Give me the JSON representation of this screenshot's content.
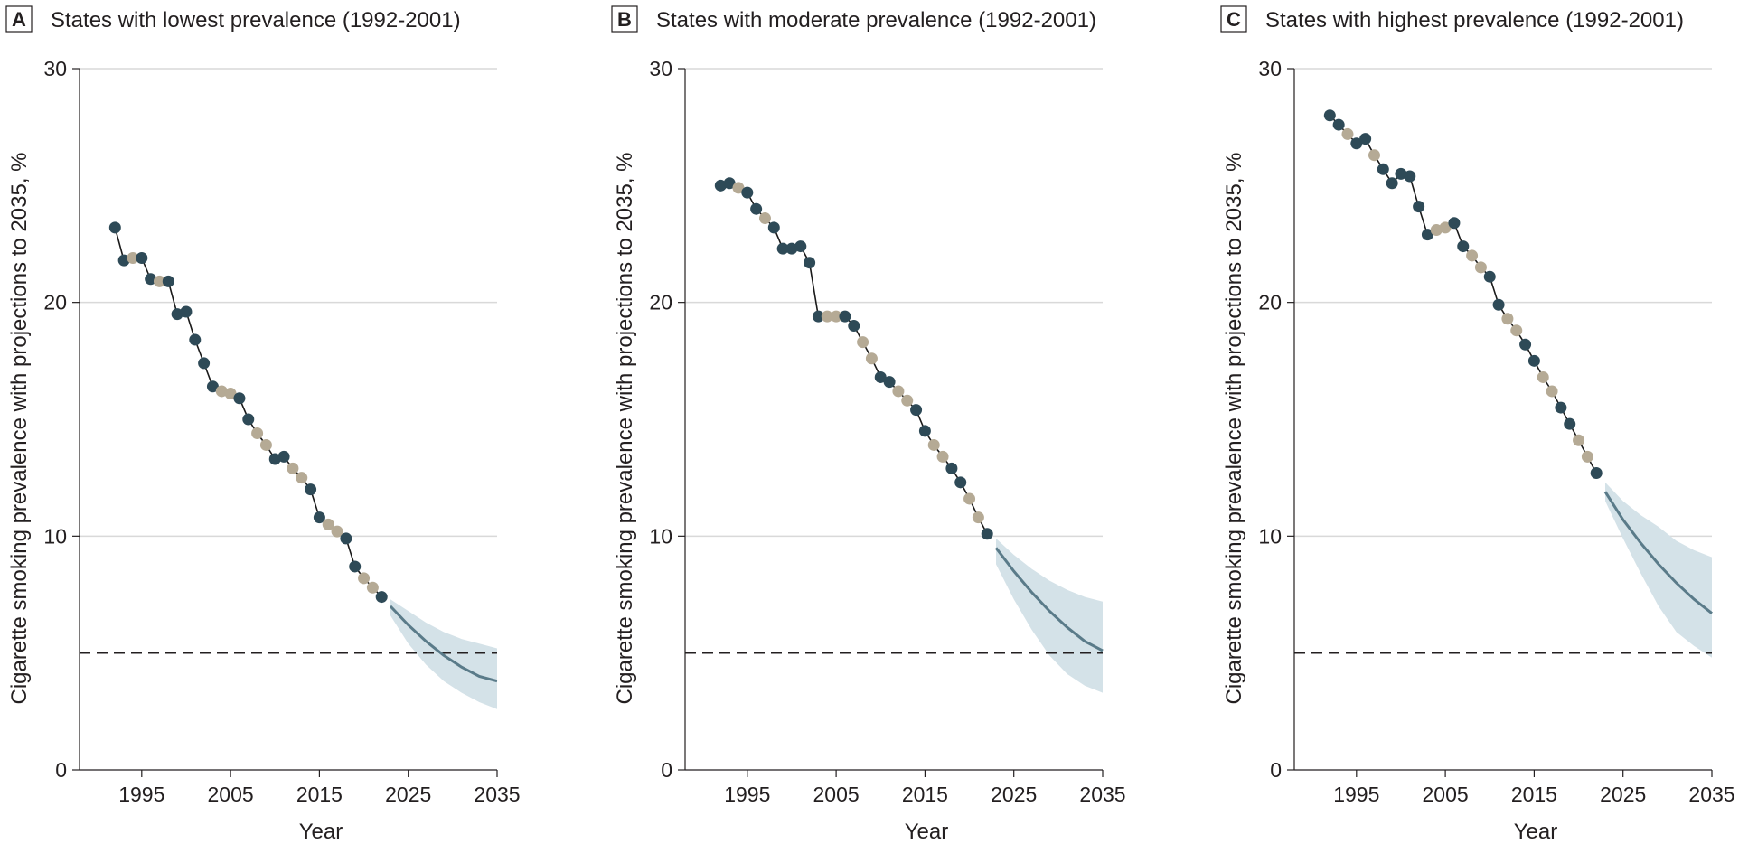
{
  "colors": {
    "dark_point": "#2e4a57",
    "light_point": "#b5aa95",
    "projection_line": "#5a7b89",
    "ci_band": "#d4e2e8",
    "gridline": "#d9d9d9",
    "axis": "#231f20",
    "dashed_target": "#231f20"
  },
  "chart_data": [
    {
      "panel_letter": "A",
      "title": "States with lowest prevalence (1992-2001)",
      "type": "line",
      "xlabel": "Year",
      "ylabel": "Cigarette smoking prevalence with projections to 2035, %",
      "xlim": [
        1988,
        2035
      ],
      "ylim": [
        0,
        30
      ],
      "xticks": [
        "1995",
        "2005",
        "2015",
        "2025",
        "2035"
      ],
      "yticks": [
        "0",
        "10",
        "20",
        "30"
      ],
      "reference_line": 5,
      "observed": [
        {
          "x": 1992,
          "y": 23.2,
          "shade": "dark"
        },
        {
          "x": 1993,
          "y": 21.8,
          "shade": "dark"
        },
        {
          "x": 1994,
          "y": 21.9,
          "shade": "light"
        },
        {
          "x": 1995,
          "y": 21.9,
          "shade": "dark"
        },
        {
          "x": 1996,
          "y": 21.0,
          "shade": "dark"
        },
        {
          "x": 1997,
          "y": 20.9,
          "shade": "light"
        },
        {
          "x": 1998,
          "y": 20.9,
          "shade": "dark"
        },
        {
          "x": 1999,
          "y": 19.5,
          "shade": "dark"
        },
        {
          "x": 2000,
          "y": 19.6,
          "shade": "dark"
        },
        {
          "x": 2001,
          "y": 18.4,
          "shade": "dark"
        },
        {
          "x": 2002,
          "y": 17.4,
          "shade": "dark"
        },
        {
          "x": 2003,
          "y": 16.4,
          "shade": "dark"
        },
        {
          "x": 2004,
          "y": 16.2,
          "shade": "light"
        },
        {
          "x": 2005,
          "y": 16.1,
          "shade": "light"
        },
        {
          "x": 2006,
          "y": 15.9,
          "shade": "dark"
        },
        {
          "x": 2007,
          "y": 15.0,
          "shade": "dark"
        },
        {
          "x": 2008,
          "y": 14.4,
          "shade": "light"
        },
        {
          "x": 2009,
          "y": 13.9,
          "shade": "light"
        },
        {
          "x": 2010,
          "y": 13.3,
          "shade": "dark"
        },
        {
          "x": 2011,
          "y": 13.4,
          "shade": "dark"
        },
        {
          "x": 2012,
          "y": 12.9,
          "shade": "light"
        },
        {
          "x": 2013,
          "y": 12.5,
          "shade": "light"
        },
        {
          "x": 2014,
          "y": 12.0,
          "shade": "dark"
        },
        {
          "x": 2015,
          "y": 10.8,
          "shade": "dark"
        },
        {
          "x": 2016,
          "y": 10.5,
          "shade": "light"
        },
        {
          "x": 2017,
          "y": 10.2,
          "shade": "light"
        },
        {
          "x": 2018,
          "y": 9.9,
          "shade": "dark"
        },
        {
          "x": 2019,
          "y": 8.7,
          "shade": "dark"
        },
        {
          "x": 2020,
          "y": 8.2,
          "shade": "light"
        },
        {
          "x": 2021,
          "y": 7.8,
          "shade": "light"
        },
        {
          "x": 2022,
          "y": 7.4,
          "shade": "dark"
        }
      ],
      "projection": {
        "x": [
          2023,
          2025,
          2027,
          2029,
          2031,
          2033,
          2035
        ],
        "mean": [
          7.0,
          6.2,
          5.5,
          4.9,
          4.4,
          4.0,
          3.8
        ],
        "lower": [
          6.6,
          5.4,
          4.5,
          3.8,
          3.3,
          2.9,
          2.6
        ],
        "upper": [
          7.3,
          6.8,
          6.3,
          5.9,
          5.6,
          5.4,
          5.2
        ]
      }
    },
    {
      "panel_letter": "B",
      "title": "States with moderate prevalence (1992-2001)",
      "type": "line",
      "xlabel": "Year",
      "ylabel": "Cigarette smoking prevalence with projections to 2035, %",
      "xlim": [
        1988,
        2035
      ],
      "ylim": [
        0,
        30
      ],
      "xticks": [
        "1995",
        "2005",
        "2015",
        "2025",
        "2035"
      ],
      "yticks": [
        "0",
        "10",
        "20",
        "30"
      ],
      "reference_line": 5,
      "observed": [
        {
          "x": 1992,
          "y": 25.0,
          "shade": "dark"
        },
        {
          "x": 1993,
          "y": 25.1,
          "shade": "dark"
        },
        {
          "x": 1994,
          "y": 24.9,
          "shade": "light"
        },
        {
          "x": 1995,
          "y": 24.7,
          "shade": "dark"
        },
        {
          "x": 1996,
          "y": 24.0,
          "shade": "dark"
        },
        {
          "x": 1997,
          "y": 23.6,
          "shade": "light"
        },
        {
          "x": 1998,
          "y": 23.2,
          "shade": "dark"
        },
        {
          "x": 1999,
          "y": 22.3,
          "shade": "dark"
        },
        {
          "x": 2000,
          "y": 22.3,
          "shade": "dark"
        },
        {
          "x": 2001,
          "y": 22.4,
          "shade": "dark"
        },
        {
          "x": 2002,
          "y": 21.7,
          "shade": "dark"
        },
        {
          "x": 2003,
          "y": 19.4,
          "shade": "dark"
        },
        {
          "x": 2004,
          "y": 19.4,
          "shade": "light"
        },
        {
          "x": 2005,
          "y": 19.4,
          "shade": "light"
        },
        {
          "x": 2006,
          "y": 19.4,
          "shade": "dark"
        },
        {
          "x": 2007,
          "y": 19.0,
          "shade": "dark"
        },
        {
          "x": 2008,
          "y": 18.3,
          "shade": "light"
        },
        {
          "x": 2009,
          "y": 17.6,
          "shade": "light"
        },
        {
          "x": 2010,
          "y": 16.8,
          "shade": "dark"
        },
        {
          "x": 2011,
          "y": 16.6,
          "shade": "dark"
        },
        {
          "x": 2012,
          "y": 16.2,
          "shade": "light"
        },
        {
          "x": 2013,
          "y": 15.8,
          "shade": "light"
        },
        {
          "x": 2014,
          "y": 15.4,
          "shade": "dark"
        },
        {
          "x": 2015,
          "y": 14.5,
          "shade": "dark"
        },
        {
          "x": 2016,
          "y": 13.9,
          "shade": "light"
        },
        {
          "x": 2017,
          "y": 13.4,
          "shade": "light"
        },
        {
          "x": 2018,
          "y": 12.9,
          "shade": "dark"
        },
        {
          "x": 2019,
          "y": 12.3,
          "shade": "dark"
        },
        {
          "x": 2020,
          "y": 11.6,
          "shade": "light"
        },
        {
          "x": 2021,
          "y": 10.8,
          "shade": "light"
        },
        {
          "x": 2022,
          "y": 10.1,
          "shade": "dark"
        }
      ],
      "projection": {
        "x": [
          2023,
          2025,
          2027,
          2029,
          2031,
          2033,
          2035
        ],
        "mean": [
          9.5,
          8.5,
          7.6,
          6.8,
          6.1,
          5.5,
          5.1
        ],
        "lower": [
          8.8,
          7.3,
          6.0,
          4.9,
          4.1,
          3.6,
          3.3
        ],
        "upper": [
          9.9,
          9.2,
          8.6,
          8.1,
          7.7,
          7.4,
          7.2
        ]
      }
    },
    {
      "panel_letter": "C",
      "title": "States with highest prevalence (1992-2001)",
      "type": "line",
      "xlabel": "Year",
      "ylabel": "Cigarette smoking prevalence with projections to 2035, %",
      "xlim": [
        1988,
        2035
      ],
      "ylim": [
        0,
        30
      ],
      "xticks": [
        "1995",
        "2005",
        "2015",
        "2025",
        "2035"
      ],
      "yticks": [
        "0",
        "10",
        "20",
        "30"
      ],
      "reference_line": 5,
      "observed": [
        {
          "x": 1992,
          "y": 28.0,
          "shade": "dark"
        },
        {
          "x": 1993,
          "y": 27.6,
          "shade": "dark"
        },
        {
          "x": 1994,
          "y": 27.2,
          "shade": "light"
        },
        {
          "x": 1995,
          "y": 26.8,
          "shade": "dark"
        },
        {
          "x": 1996,
          "y": 27.0,
          "shade": "dark"
        },
        {
          "x": 1997,
          "y": 26.3,
          "shade": "light"
        },
        {
          "x": 1998,
          "y": 25.7,
          "shade": "dark"
        },
        {
          "x": 1999,
          "y": 25.1,
          "shade": "dark"
        },
        {
          "x": 2000,
          "y": 25.5,
          "shade": "dark"
        },
        {
          "x": 2001,
          "y": 25.4,
          "shade": "dark"
        },
        {
          "x": 2002,
          "y": 24.1,
          "shade": "dark"
        },
        {
          "x": 2003,
          "y": 22.9,
          "shade": "dark"
        },
        {
          "x": 2004,
          "y": 23.1,
          "shade": "light"
        },
        {
          "x": 2005,
          "y": 23.2,
          "shade": "light"
        },
        {
          "x": 2006,
          "y": 23.4,
          "shade": "dark"
        },
        {
          "x": 2007,
          "y": 22.4,
          "shade": "dark"
        },
        {
          "x": 2008,
          "y": 22.0,
          "shade": "light"
        },
        {
          "x": 2009,
          "y": 21.5,
          "shade": "light"
        },
        {
          "x": 2010,
          "y": 21.1,
          "shade": "dark"
        },
        {
          "x": 2011,
          "y": 19.9,
          "shade": "dark"
        },
        {
          "x": 2012,
          "y": 19.3,
          "shade": "light"
        },
        {
          "x": 2013,
          "y": 18.8,
          "shade": "light"
        },
        {
          "x": 2014,
          "y": 18.2,
          "shade": "dark"
        },
        {
          "x": 2015,
          "y": 17.5,
          "shade": "dark"
        },
        {
          "x": 2016,
          "y": 16.8,
          "shade": "light"
        },
        {
          "x": 2017,
          "y": 16.2,
          "shade": "light"
        },
        {
          "x": 2018,
          "y": 15.5,
          "shade": "dark"
        },
        {
          "x": 2019,
          "y": 14.8,
          "shade": "dark"
        },
        {
          "x": 2020,
          "y": 14.1,
          "shade": "light"
        },
        {
          "x": 2021,
          "y": 13.4,
          "shade": "light"
        },
        {
          "x": 2022,
          "y": 12.7,
          "shade": "dark"
        }
      ],
      "projection": {
        "x": [
          2023,
          2025,
          2027,
          2029,
          2031,
          2033,
          2035
        ],
        "mean": [
          11.9,
          10.7,
          9.7,
          8.8,
          8.0,
          7.3,
          6.7
        ],
        "lower": [
          11.5,
          9.9,
          8.4,
          7.0,
          5.9,
          5.3,
          4.8
        ],
        "upper": [
          12.3,
          11.5,
          10.9,
          10.4,
          9.8,
          9.4,
          9.1
        ]
      }
    }
  ]
}
